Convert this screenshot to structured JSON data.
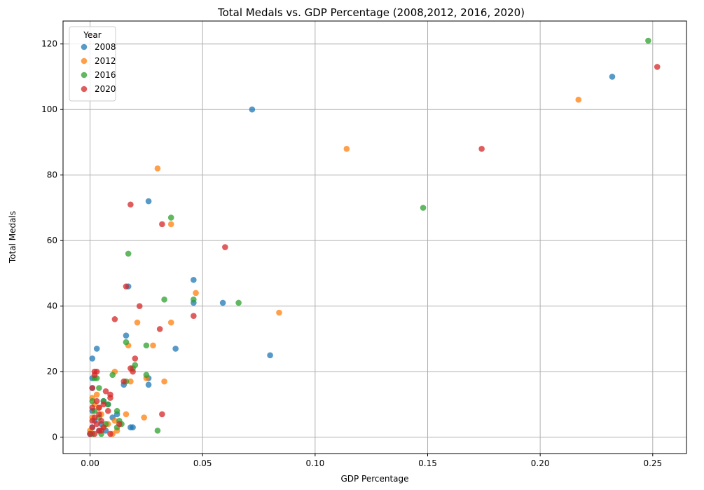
{
  "chart_data": {
    "type": "scatter",
    "title": "Total Medals vs. GDP Percentage (2008,2012, 2016, 2020)",
    "xlabel": "GDP Percentage",
    "ylabel": "Total Medals",
    "xlim": [
      -0.012,
      0.265
    ],
    "ylim": [
      -5,
      127
    ],
    "xticks": [
      0.0,
      0.05,
      0.1,
      0.15,
      0.2,
      0.25
    ],
    "xtick_labels": [
      "0.00",
      "0.05",
      "0.10",
      "0.15",
      "0.20",
      "0.25"
    ],
    "yticks": [
      0,
      20,
      40,
      60,
      80,
      100,
      120
    ],
    "ytick_labels": [
      "0",
      "20",
      "40",
      "60",
      "80",
      "100",
      "120"
    ],
    "grid": true,
    "legend_title": "Year",
    "legend_position": "upper-left",
    "series": [
      {
        "name": "2008",
        "color": "#1f77b4",
        "points": [
          [
            0.232,
            110
          ],
          [
            0.072,
            100
          ],
          [
            0.026,
            72
          ],
          [
            0.046,
            48
          ],
          [
            0.046,
            41
          ],
          [
            0.059,
            41
          ],
          [
            0.08,
            25
          ],
          [
            0.038,
            27
          ],
          [
            0.017,
            46
          ],
          [
            0.016,
            31
          ],
          [
            0.026,
            18
          ],
          [
            0.015,
            16
          ],
          [
            0.026,
            16
          ],
          [
            0.003,
            27
          ],
          [
            0.001,
            24
          ],
          [
            0.001,
            18
          ],
          [
            0.001,
            15
          ],
          [
            0.018,
            3
          ],
          [
            0.019,
            3
          ],
          [
            0.008,
            10
          ],
          [
            0.006,
            11
          ],
          [
            0.012,
            7
          ],
          [
            0.002,
            5
          ],
          [
            0.004,
            2
          ],
          [
            0.007,
            2
          ],
          [
            0.01,
            6
          ],
          [
            0.001,
            8
          ],
          [
            0.001,
            3
          ],
          [
            0.0,
            1
          ],
          [
            0.005,
            4
          ]
        ]
      },
      {
        "name": "2012",
        "color": "#ff7f0e",
        "points": [
          [
            0.217,
            103
          ],
          [
            0.114,
            88
          ],
          [
            0.03,
            82
          ],
          [
            0.036,
            65
          ],
          [
            0.047,
            44
          ],
          [
            0.084,
            38
          ],
          [
            0.036,
            35
          ],
          [
            0.021,
            35
          ],
          [
            0.017,
            28
          ],
          [
            0.028,
            28
          ],
          [
            0.011,
            20
          ],
          [
            0.018,
            17
          ],
          [
            0.033,
            17
          ],
          [
            0.025,
            18
          ],
          [
            0.024,
            6
          ],
          [
            0.016,
            7
          ],
          [
            0.012,
            2
          ],
          [
            0.011,
            5
          ],
          [
            0.003,
            13
          ],
          [
            0.001,
            12
          ],
          [
            0.002,
            10
          ],
          [
            0.005,
            7
          ],
          [
            0.008,
            4
          ],
          [
            0.01,
            1
          ],
          [
            0.004,
            9
          ],
          [
            0.006,
            3
          ],
          [
            0.001,
            6
          ],
          [
            0.0,
            2
          ]
        ]
      },
      {
        "name": "2016",
        "color": "#2ca02c",
        "points": [
          [
            0.248,
            121
          ],
          [
            0.148,
            70
          ],
          [
            0.036,
            67
          ],
          [
            0.017,
            56
          ],
          [
            0.066,
            41
          ],
          [
            0.046,
            42
          ],
          [
            0.033,
            42
          ],
          [
            0.016,
            29
          ],
          [
            0.025,
            28
          ],
          [
            0.02,
            22
          ],
          [
            0.019,
            21
          ],
          [
            0.01,
            19
          ],
          [
            0.025,
            19
          ],
          [
            0.016,
            17
          ],
          [
            0.03,
            2
          ],
          [
            0.012,
            8
          ],
          [
            0.013,
            5
          ],
          [
            0.014,
            4
          ],
          [
            0.012,
            3
          ],
          [
            0.002,
            18
          ],
          [
            0.003,
            18
          ],
          [
            0.004,
            15
          ],
          [
            0.001,
            11
          ],
          [
            0.006,
            11
          ],
          [
            0.008,
            10
          ],
          [
            0.004,
            6
          ],
          [
            0.002,
            8
          ],
          [
            0.007,
            4
          ],
          [
            0.001,
            1
          ],
          [
            0.005,
            1
          ]
        ]
      },
      {
        "name": "2020",
        "color": "#d62728",
        "points": [
          [
            0.252,
            113
          ],
          [
            0.174,
            88
          ],
          [
            0.018,
            71
          ],
          [
            0.032,
            65
          ],
          [
            0.06,
            58
          ],
          [
            0.016,
            46
          ],
          [
            0.022,
            40
          ],
          [
            0.046,
            37
          ],
          [
            0.011,
            36
          ],
          [
            0.031,
            33
          ],
          [
            0.02,
            24
          ],
          [
            0.018,
            21
          ],
          [
            0.019,
            20
          ],
          [
            0.015,
            17
          ],
          [
            0.032,
            7
          ],
          [
            0.013,
            4
          ],
          [
            0.009,
            1
          ],
          [
            0.002,
            20
          ],
          [
            0.003,
            20
          ],
          [
            0.002,
            19
          ],
          [
            0.001,
            15
          ],
          [
            0.007,
            14
          ],
          [
            0.009,
            13
          ],
          [
            0.009,
            12
          ],
          [
            0.003,
            11
          ],
          [
            0.006,
            10
          ],
          [
            0.004,
            9
          ],
          [
            0.001,
            9
          ],
          [
            0.008,
            8
          ],
          [
            0.004,
            7
          ],
          [
            0.002,
            6
          ],
          [
            0.005,
            5
          ],
          [
            0.003,
            4
          ],
          [
            0.001,
            3
          ],
          [
            0.006,
            3
          ],
          [
            0.004,
            2
          ],
          [
            0.0,
            1
          ],
          [
            0.002,
            1
          ],
          [
            0.005,
            2
          ],
          [
            0.001,
            5
          ]
        ]
      }
    ]
  }
}
